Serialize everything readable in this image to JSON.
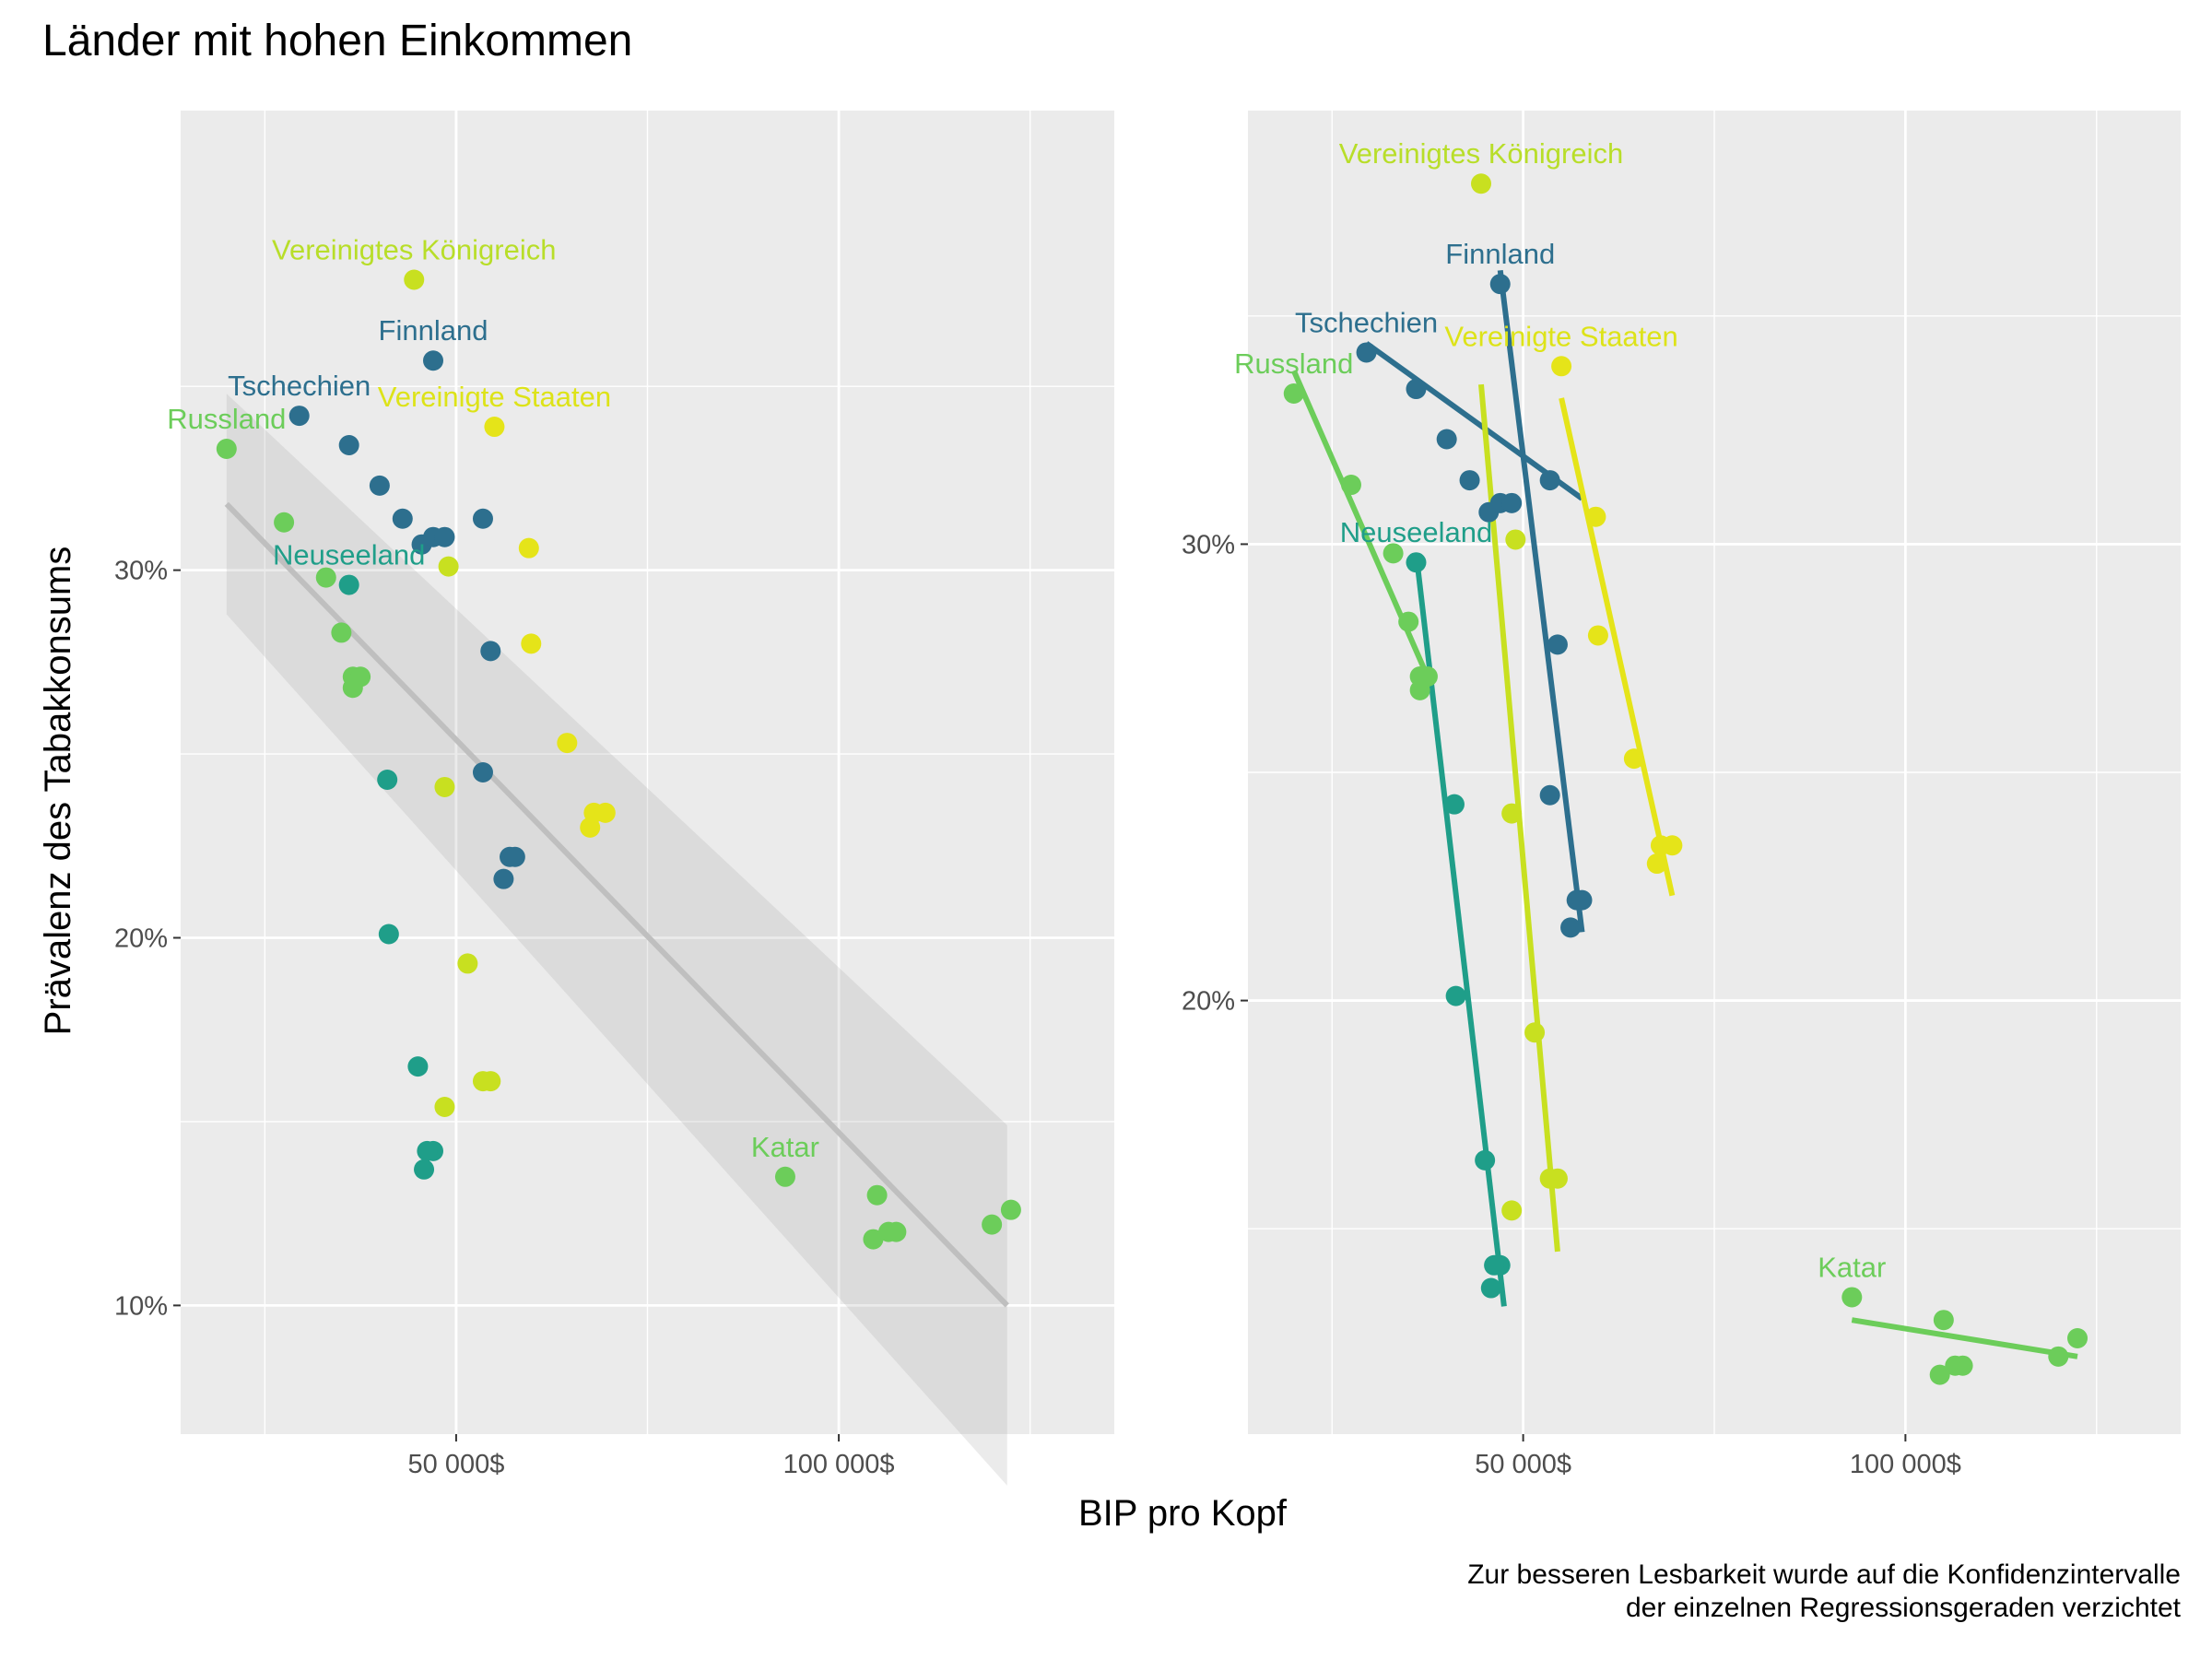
{
  "chart_data": [
    {
      "type": "scatter",
      "title": "Länder mit hohen Einkommen",
      "xlabel": "BIP pro Kopf",
      "ylabel": "Prävalenz des Tabakkonsums",
      "x_ticks": [
        {
          "value": 50000,
          "label": "50 000$"
        },
        {
          "value": 100000,
          "label": "100 000$"
        }
      ],
      "x_minor_ticks": [
        25000,
        75000,
        125000
      ],
      "y_ticks": [
        {
          "value": 10,
          "label": "10%"
        },
        {
          "value": 20,
          "label": "20%"
        },
        {
          "value": 30,
          "label": "30%"
        }
      ],
      "y_minor_ticks": [
        15,
        25,
        35
      ],
      "xlim": [
        14000,
        136000
      ],
      "ylim": [
        6.5,
        42.5
      ],
      "grid": true,
      "regression": {
        "x": [
          20000,
          122000
        ],
        "y": [
          31.8,
          10.0
        ],
        "ci_x": [
          20000,
          122000
        ],
        "ci_lower": [
          28.8,
          5.1
        ],
        "ci_upper": [
          34.8,
          14.9
        ],
        "color": "#bfbfbf"
      },
      "series": [
        {
          "color": "#2d6f8e",
          "label_colour": "#2d6f8e",
          "points": [
            {
              "x": 29500,
              "y": 34.2
            },
            {
              "x": 36000,
              "y": 33.4
            },
            {
              "x": 40000,
              "y": 32.3
            },
            {
              "x": 43000,
              "y": 31.4
            },
            {
              "x": 45500,
              "y": 30.7
            },
            {
              "x": 47000,
              "y": 30.9
            },
            {
              "x": 48500,
              "y": 30.9
            },
            {
              "x": 47000,
              "y": 35.7
            },
            {
              "x": 53500,
              "y": 31.4
            },
            {
              "x": 54500,
              "y": 27.8
            },
            {
              "x": 53500,
              "y": 24.5
            },
            {
              "x": 57000,
              "y": 22.2
            },
            {
              "x": 57700,
              "y": 22.2
            },
            {
              "x": 56200,
              "y": 21.6
            }
          ],
          "labels": [
            {
              "text": "Finnland",
              "x": 47000,
              "y": 35.7
            },
            {
              "text": "Tschechien",
              "x": 29500,
              "y": 34.2
            }
          ]
        },
        {
          "color": "#1f9e89",
          "label_colour": "#1f9e89",
          "points": [
            {
              "x": 36000,
              "y": 29.6
            },
            {
              "x": 41000,
              "y": 24.3
            },
            {
              "x": 41200,
              "y": 20.1
            },
            {
              "x": 45000,
              "y": 16.5
            },
            {
              "x": 47000,
              "y": 14.2
            },
            {
              "x": 46200,
              "y": 14.2
            },
            {
              "x": 45800,
              "y": 13.7
            }
          ],
          "labels": [
            {
              "text": "Neuseeland",
              "x": 36000,
              "y": 29.6
            }
          ]
        },
        {
          "color": "#6ccd5a",
          "label_colour": "#6ccd5a",
          "points": [
            {
              "x": 20000,
              "y": 33.3
            },
            {
              "x": 27500,
              "y": 31.3
            },
            {
              "x": 33000,
              "y": 29.8
            },
            {
              "x": 35000,
              "y": 28.3
            },
            {
              "x": 36500,
              "y": 27.1
            },
            {
              "x": 37500,
              "y": 27.1
            },
            {
              "x": 36500,
              "y": 26.8
            },
            {
              "x": 93000,
              "y": 13.5
            },
            {
              "x": 105000,
              "y": 13.0
            },
            {
              "x": 104500,
              "y": 11.8
            },
            {
              "x": 106500,
              "y": 12.0
            },
            {
              "x": 107500,
              "y": 12.0
            },
            {
              "x": 120000,
              "y": 12.2
            },
            {
              "x": 122500,
              "y": 12.6
            }
          ],
          "labels": [
            {
              "text": "Russland",
              "x": 20000,
              "y": 33.3
            },
            {
              "text": "Katar",
              "x": 93000,
              "y": 13.5
            }
          ]
        },
        {
          "color": "#c8e020",
          "label_colour": "#b8de29",
          "points": [
            {
              "x": 44500,
              "y": 37.9
            },
            {
              "x": 49000,
              "y": 30.1
            },
            {
              "x": 48500,
              "y": 24.1
            },
            {
              "x": 51500,
              "y": 19.3
            },
            {
              "x": 53500,
              "y": 16.1
            },
            {
              "x": 54500,
              "y": 16.1
            },
            {
              "x": 48500,
              "y": 15.4
            }
          ],
          "labels": [
            {
              "text": "Vereinigtes Königreich",
              "x": 44500,
              "y": 37.9
            }
          ]
        },
        {
          "color": "#e5e419",
          "label_colour": "#dde318",
          "points": [
            {
              "x": 55000,
              "y": 33.9
            },
            {
              "x": 59500,
              "y": 30.6
            },
            {
              "x": 59800,
              "y": 28.0
            },
            {
              "x": 64500,
              "y": 25.3
            },
            {
              "x": 67500,
              "y": 23.0
            },
            {
              "x": 68000,
              "y": 23.4
            },
            {
              "x": 69500,
              "y": 23.4
            }
          ],
          "labels": [
            {
              "text": "Vereinigte Staaten",
              "x": 55000,
              "y": 33.9
            }
          ]
        }
      ]
    },
    {
      "type": "scatter",
      "xlabel": "BIP pro Kopf",
      "x_ticks": [
        {
          "value": 50000,
          "label": "50 000$"
        },
        {
          "value": 100000,
          "label": "100 000$"
        }
      ],
      "x_minor_ticks": [
        25000,
        75000,
        125000
      ],
      "y_ticks": [
        {
          "value": 20,
          "label": "20%"
        },
        {
          "value": 30,
          "label": "30%"
        }
      ],
      "y_minor_ticks": [
        15,
        25,
        35
      ],
      "xlim": [
        14000,
        136000
      ],
      "ylim": [
        10.5,
        39.5
      ],
      "grid": true,
      "series": [
        {
          "color": "#2d6f8e",
          "label_colour": "#2d6f8e",
          "fit": {
            "x": [
              29500,
              57700
            ],
            "y": [
              34.4,
              31.0
            ]
          },
          "fit2": {
            "x": [
              47000,
              57700
            ],
            "y": [
              36.0,
              21.5
            ]
          },
          "points": [
            {
              "x": 29500,
              "y": 34.2
            },
            {
              "x": 36000,
              "y": 33.4
            },
            {
              "x": 40000,
              "y": 32.3
            },
            {
              "x": 43000,
              "y": 31.4
            },
            {
              "x": 45500,
              "y": 30.7
            },
            {
              "x": 47000,
              "y": 30.9
            },
            {
              "x": 48500,
              "y": 30.9
            },
            {
              "x": 47000,
              "y": 35.7
            },
            {
              "x": 53500,
              "y": 31.4
            },
            {
              "x": 54500,
              "y": 27.8
            },
            {
              "x": 53500,
              "y": 24.5
            },
            {
              "x": 57000,
              "y": 22.2
            },
            {
              "x": 57700,
              "y": 22.2
            },
            {
              "x": 56200,
              "y": 21.6
            }
          ],
          "labels": [
            {
              "text": "Finnland",
              "x": 47000,
              "y": 35.7
            },
            {
              "text": "Tschechien",
              "x": 29500,
              "y": 34.2
            }
          ]
        },
        {
          "color": "#1f9e89",
          "label_colour": "#1f9e89",
          "fit": {
            "x": [
              36000,
              47500
            ],
            "y": [
              29.8,
              13.3
            ]
          },
          "points": [
            {
              "x": 36000,
              "y": 29.6
            },
            {
              "x": 41000,
              "y": 24.3
            },
            {
              "x": 41200,
              "y": 20.1
            },
            {
              "x": 45000,
              "y": 16.5
            },
            {
              "x": 47000,
              "y": 14.2
            },
            {
              "x": 46200,
              "y": 14.2
            },
            {
              "x": 45800,
              "y": 13.7
            }
          ],
          "labels": [
            {
              "text": "Neuseeland",
              "x": 36000,
              "y": 29.6
            }
          ]
        },
        {
          "color": "#6ccd5a",
          "label_colour": "#6ccd5a",
          "fit": {
            "x": [
              20000,
              38000
            ],
            "y": [
              33.8,
              26.9
            ]
          },
          "fit2": {
            "x": [
              93000,
              122500
            ],
            "y": [
              13.0,
              12.2
            ]
          },
          "points": [
            {
              "x": 20000,
              "y": 33.3
            },
            {
              "x": 27500,
              "y": 31.3
            },
            {
              "x": 33000,
              "y": 29.8
            },
            {
              "x": 35000,
              "y": 28.3
            },
            {
              "x": 36500,
              "y": 27.1
            },
            {
              "x": 37500,
              "y": 27.1
            },
            {
              "x": 36500,
              "y": 26.8
            },
            {
              "x": 93000,
              "y": 13.5
            },
            {
              "x": 105000,
              "y": 13.0
            },
            {
              "x": 104500,
              "y": 11.8
            },
            {
              "x": 106500,
              "y": 12.0
            },
            {
              "x": 107500,
              "y": 12.0
            },
            {
              "x": 120000,
              "y": 12.2
            },
            {
              "x": 122500,
              "y": 12.6
            }
          ],
          "labels": [
            {
              "text": "Russland",
              "x": 20000,
              "y": 33.3
            },
            {
              "text": "Katar",
              "x": 93000,
              "y": 13.5
            }
          ]
        },
        {
          "color": "#c8e020",
          "label_colour": "#b8de29",
          "fit": {
            "x": [
              44500,
              54500
            ],
            "y": [
              33.5,
              14.5
            ]
          },
          "points": [
            {
              "x": 44500,
              "y": 37.9
            },
            {
              "x": 49000,
              "y": 30.1
            },
            {
              "x": 48500,
              "y": 24.1
            },
            {
              "x": 51500,
              "y": 19.3
            },
            {
              "x": 53500,
              "y": 16.1
            },
            {
              "x": 54500,
              "y": 16.1
            },
            {
              "x": 48500,
              "y": 15.4
            }
          ],
          "labels": [
            {
              "text": "Vereinigtes Königreich",
              "x": 44500,
              "y": 37.9
            }
          ]
        },
        {
          "color": "#e5e419",
          "label_colour": "#dde318",
          "fit": {
            "x": [
              55000,
              69500
            ],
            "y": [
              33.2,
              22.3
            ]
          },
          "points": [
            {
              "x": 55000,
              "y": 33.9
            },
            {
              "x": 59500,
              "y": 30.6
            },
            {
              "x": 59800,
              "y": 28.0
            },
            {
              "x": 64500,
              "y": 25.3
            },
            {
              "x": 67500,
              "y": 23.0
            },
            {
              "x": 68000,
              "y": 23.4
            },
            {
              "x": 69500,
              "y": 23.4
            }
          ],
          "labels": [
            {
              "text": "Vereinigte Staaten",
              "x": 55000,
              "y": 33.9
            }
          ]
        }
      ]
    }
  ],
  "caption": {
    "line1": "Zur besseren Lesbarkeit wurde auf die Konfidenzintervalle",
    "line2": "der einzelnen Regressionsgeraden verzichtet"
  }
}
